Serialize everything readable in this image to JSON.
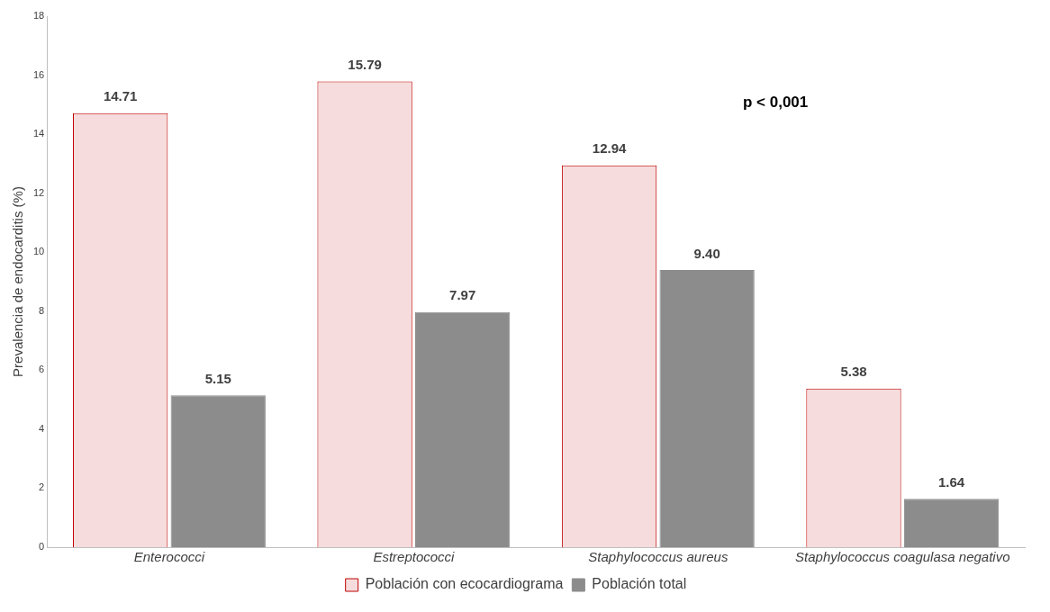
{
  "chart_data": {
    "type": "bar",
    "ylabel": "Prevalencia de endocarditis (%)",
    "categories": [
      "Enterococci",
      "Estreptococci",
      "Staphylococcus aureus",
      "Staphylococcus coagulasa negativo"
    ],
    "series": [
      {
        "name": "Población con ecocardiograma",
        "color": "#f6dcdc",
        "values": [
          14.71,
          15.79,
          12.94,
          5.38
        ]
      },
      {
        "name": "Población total",
        "color": "#8c8c8c",
        "values": [
          5.15,
          7.97,
          9.4,
          1.64
        ]
      }
    ],
    "ylim": [
      0,
      18
    ],
    "yticks": [
      0,
      2,
      4,
      6,
      8,
      10,
      12,
      14,
      16,
      18
    ],
    "grid": false,
    "legend": "bottom",
    "value_labels": [
      [
        "14.71",
        "15.79",
        "12.94",
        "5.38"
      ],
      [
        "5.15",
        "7.97",
        "9.40",
        "1.64"
      ]
    ],
    "annotations": [
      "p < 0,001"
    ]
  }
}
